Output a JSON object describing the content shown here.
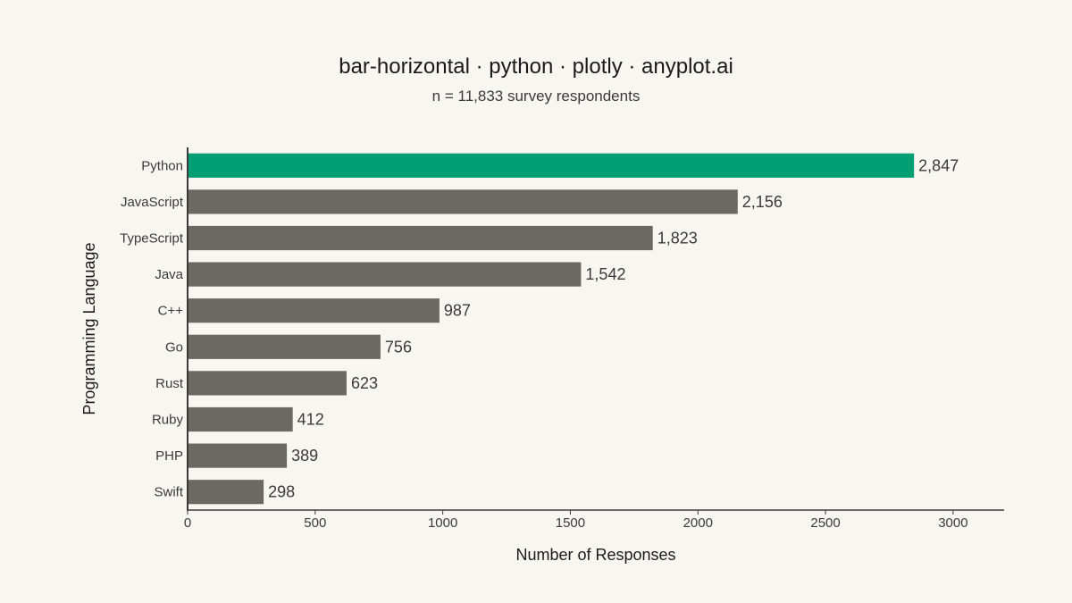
{
  "chart_data": {
    "type": "bar",
    "orientation": "horizontal",
    "title": "bar-horizontal · python · plotly · anyplot.ai",
    "subtitle": "n = 11,833 survey respondents",
    "xlabel": "Number of Responses",
    "ylabel": "Programming Language",
    "categories": [
      "Python",
      "JavaScript",
      "TypeScript",
      "Java",
      "C++",
      "Go",
      "Rust",
      "Ruby",
      "PHP",
      "Swift"
    ],
    "values": [
      2847,
      2156,
      1823,
      1542,
      987,
      756,
      623,
      412,
      389,
      298
    ],
    "value_labels": [
      "2,847",
      "2,156",
      "1,823",
      "1,542",
      "987",
      "756",
      "623",
      "412",
      "389",
      "298"
    ],
    "xlim": [
      0,
      3200
    ],
    "xticks": [
      0,
      500,
      1000,
      1500,
      2000,
      2500,
      3000
    ],
    "xtick_labels": [
      "0",
      "500",
      "1000",
      "1500",
      "2000",
      "2500",
      "3000"
    ],
    "grid": false,
    "colors": {
      "highlight": "#009e73",
      "default": "#6b6a62",
      "background": "#f8f6f1",
      "axis": "#3a3a3a"
    },
    "highlight_category": "Python"
  }
}
